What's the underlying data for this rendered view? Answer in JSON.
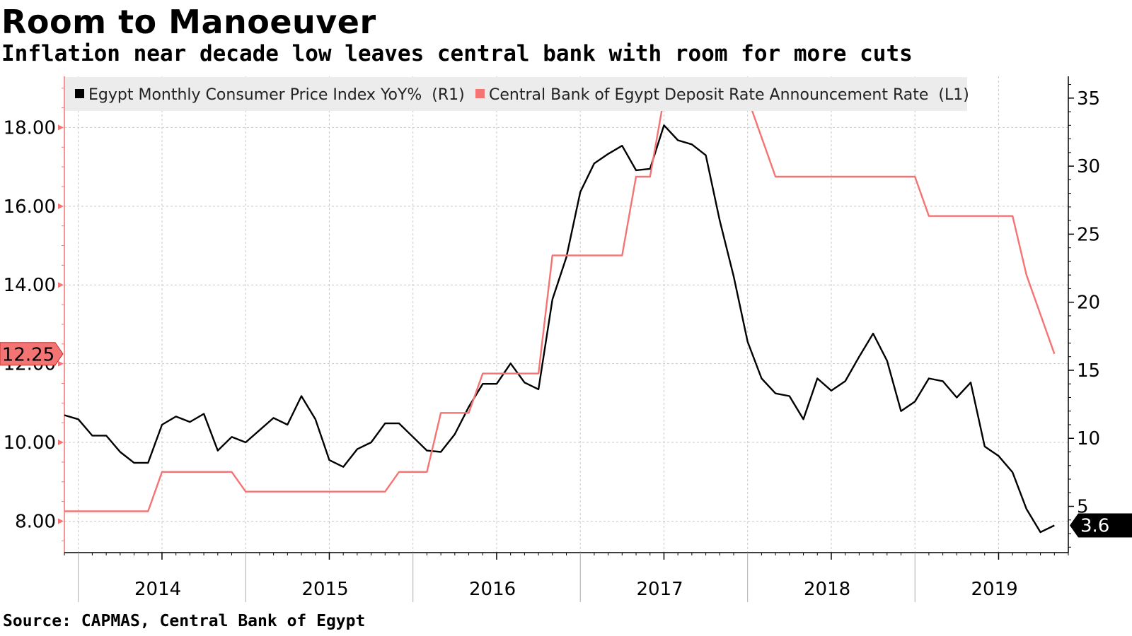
{
  "title": "Room to Manoeuver",
  "subtitle": "Inflation near decade low leaves central bank with room for more cuts",
  "source": "Source: CAPMAS, Central Bank of Egypt",
  "colors": {
    "cpi": "#000000",
    "rate": "#f47473",
    "grid": "#c8c8c8",
    "legend_bg": "#ececec"
  },
  "chart_data": {
    "type": "line",
    "title": "Room to Manoeuver",
    "subtitle": "Inflation near decade low leaves central bank with room for more cuts",
    "x_labels": [
      "2014",
      "2015",
      "2016",
      "2017",
      "2018",
      "2019"
    ],
    "x_range": [
      "2013-12",
      "2019-12"
    ],
    "left_axis": {
      "ticks": [
        "8.00",
        "10.00",
        "12.00",
        "14.00",
        "16.00",
        "18.00"
      ],
      "range": [
        7.2,
        19.3
      ]
    },
    "right_axis": {
      "ticks": [
        "5",
        "10",
        "15",
        "20",
        "25",
        "30",
        "35"
      ],
      "range": [
        1.6,
        36.6
      ]
    },
    "grid": true,
    "legend": {
      "position": "top",
      "items": [
        {
          "label": "Egypt Monthly Consumer Price Index YoY%  (R1)",
          "series": "cpi"
        },
        {
          "label": "Central Bank of Egypt Deposit Rate Announcement Rate  (L1)",
          "series": "rate"
        }
      ]
    },
    "series": [
      {
        "id": "cpi",
        "name": "Egypt Monthly Consumer Price Index YoY%  (R1)",
        "axis": "right",
        "points": [
          [
            "2013-12",
            11.7
          ],
          [
            "2014-01",
            11.4
          ],
          [
            "2014-02",
            10.2
          ],
          [
            "2014-03",
            10.2
          ],
          [
            "2014-04",
            9.0
          ],
          [
            "2014-05",
            8.2
          ],
          [
            "2014-06",
            8.2
          ],
          [
            "2014-07",
            11.0
          ],
          [
            "2014-08",
            11.6
          ],
          [
            "2014-09",
            11.2
          ],
          [
            "2014-10",
            11.8
          ],
          [
            "2014-11",
            9.1
          ],
          [
            "2014-12",
            10.1
          ],
          [
            "2015-01",
            9.7
          ],
          [
            "2015-02",
            10.6
          ],
          [
            "2015-03",
            11.5
          ],
          [
            "2015-04",
            11.0
          ],
          [
            "2015-05",
            13.1
          ],
          [
            "2015-06",
            11.4
          ],
          [
            "2015-07",
            8.4
          ],
          [
            "2015-08",
            7.9
          ],
          [
            "2015-09",
            9.2
          ],
          [
            "2015-10",
            9.7
          ],
          [
            "2015-11",
            11.1
          ],
          [
            "2015-12",
            11.1
          ],
          [
            "2016-01",
            10.1
          ],
          [
            "2016-02",
            9.1
          ],
          [
            "2016-03",
            9.0
          ],
          [
            "2016-04",
            10.3
          ],
          [
            "2016-05",
            12.3
          ],
          [
            "2016-06",
            14.0
          ],
          [
            "2016-07",
            14.0
          ],
          [
            "2016-08",
            15.5
          ],
          [
            "2016-09",
            14.1
          ],
          [
            "2016-10",
            13.6
          ],
          [
            "2016-11",
            20.2
          ],
          [
            "2016-12",
            23.3
          ],
          [
            "2017-01",
            28.1
          ],
          [
            "2017-02",
            30.2
          ],
          [
            "2017-03",
            30.9
          ],
          [
            "2017-04",
            31.5
          ],
          [
            "2017-05",
            29.7
          ],
          [
            "2017-06",
            29.8
          ],
          [
            "2017-07",
            33.0
          ],
          [
            "2017-08",
            31.9
          ],
          [
            "2017-09",
            31.6
          ],
          [
            "2017-10",
            30.8
          ],
          [
            "2017-11",
            26.0
          ],
          [
            "2017-12",
            21.9
          ],
          [
            "2018-01",
            17.1
          ],
          [
            "2018-02",
            14.4
          ],
          [
            "2018-03",
            13.3
          ],
          [
            "2018-04",
            13.1
          ],
          [
            "2018-05",
            11.4
          ],
          [
            "2018-06",
            14.4
          ],
          [
            "2018-07",
            13.5
          ],
          [
            "2018-08",
            14.2
          ],
          [
            "2018-09",
            16.0
          ],
          [
            "2018-10",
            17.7
          ],
          [
            "2018-11",
            15.7
          ],
          [
            "2018-12",
            12.0
          ],
          [
            "2019-01",
            12.7
          ],
          [
            "2019-02",
            14.4
          ],
          [
            "2019-03",
            14.2
          ],
          [
            "2019-04",
            13.0
          ],
          [
            "2019-05",
            14.1
          ],
          [
            "2019-06",
            9.4
          ],
          [
            "2019-07",
            8.7
          ],
          [
            "2019-08",
            7.5
          ],
          [
            "2019-09",
            4.8
          ],
          [
            "2019-10",
            3.1
          ],
          [
            "2019-11",
            3.6
          ]
        ],
        "last_value_label": "3.6"
      },
      {
        "id": "rate",
        "name": "Central Bank of Egypt Deposit Rate Announcement Rate  (L1)",
        "axis": "left",
        "points": [
          [
            "2013-12",
            8.25
          ],
          [
            "2014-01",
            8.25
          ],
          [
            "2014-02",
            8.25
          ],
          [
            "2014-03",
            8.25
          ],
          [
            "2014-04",
            8.25
          ],
          [
            "2014-05",
            8.25
          ],
          [
            "2014-06",
            8.25
          ],
          [
            "2014-07",
            9.25
          ],
          [
            "2014-08",
            9.25
          ],
          [
            "2014-09",
            9.25
          ],
          [
            "2014-10",
            9.25
          ],
          [
            "2014-11",
            9.25
          ],
          [
            "2014-12",
            9.25
          ],
          [
            "2015-01",
            8.75
          ],
          [
            "2015-02",
            8.75
          ],
          [
            "2015-03",
            8.75
          ],
          [
            "2015-04",
            8.75
          ],
          [
            "2015-05",
            8.75
          ],
          [
            "2015-06",
            8.75
          ],
          [
            "2015-07",
            8.75
          ],
          [
            "2015-08",
            8.75
          ],
          [
            "2015-09",
            8.75
          ],
          [
            "2015-10",
            8.75
          ],
          [
            "2015-11",
            8.75
          ],
          [
            "2015-12",
            9.25
          ],
          [
            "2016-01",
            9.25
          ],
          [
            "2016-02",
            9.25
          ],
          [
            "2016-03",
            10.75
          ],
          [
            "2016-04",
            10.75
          ],
          [
            "2016-05",
            10.75
          ],
          [
            "2016-06",
            11.75
          ],
          [
            "2016-07",
            11.75
          ],
          [
            "2016-08",
            11.75
          ],
          [
            "2016-09",
            11.75
          ],
          [
            "2016-10",
            11.75
          ],
          [
            "2016-11",
            14.75
          ],
          [
            "2016-12",
            14.75
          ],
          [
            "2017-01",
            14.75
          ],
          [
            "2017-02",
            14.75
          ],
          [
            "2017-03",
            14.75
          ],
          [
            "2017-04",
            14.75
          ],
          [
            "2017-05",
            16.75
          ],
          [
            "2017-06",
            16.75
          ],
          [
            "2017-07",
            18.75
          ],
          [
            "2017-08",
            18.75
          ],
          [
            "2017-09",
            18.75
          ],
          [
            "2017-10",
            18.75
          ],
          [
            "2017-11",
            18.75
          ],
          [
            "2017-12",
            18.75
          ],
          [
            "2018-01",
            18.75
          ],
          [
            "2018-02",
            17.75
          ],
          [
            "2018-03",
            16.75
          ],
          [
            "2018-04",
            16.75
          ],
          [
            "2018-05",
            16.75
          ],
          [
            "2018-06",
            16.75
          ],
          [
            "2018-07",
            16.75
          ],
          [
            "2018-08",
            16.75
          ],
          [
            "2018-09",
            16.75
          ],
          [
            "2018-10",
            16.75
          ],
          [
            "2018-11",
            16.75
          ],
          [
            "2018-12",
            16.75
          ],
          [
            "2019-01",
            16.75
          ],
          [
            "2019-02",
            15.75
          ],
          [
            "2019-03",
            15.75
          ],
          [
            "2019-04",
            15.75
          ],
          [
            "2019-05",
            15.75
          ],
          [
            "2019-06",
            15.75
          ],
          [
            "2019-07",
            15.75
          ],
          [
            "2019-08",
            15.75
          ],
          [
            "2019-09",
            14.25
          ],
          [
            "2019-10",
            13.25
          ],
          [
            "2019-11",
            12.25
          ]
        ],
        "last_value_label": "12.25"
      }
    ]
  }
}
